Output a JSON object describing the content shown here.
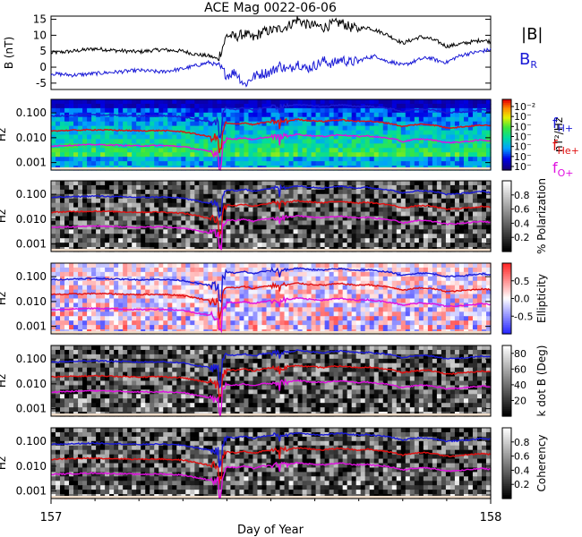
{
  "title": "ACE Mag 0022-06-06",
  "xlabel": "Day of Year",
  "x_ticks": [
    "157",
    "158"
  ],
  "legend_mag": [
    {
      "label": "|B|",
      "color": "#000000"
    },
    {
      "label": "B",
      "sub": "R",
      "color": "#1a1ad6"
    }
  ],
  "legend_gyro": [
    {
      "label": "f",
      "sub": "H+",
      "color": "#1a1ad6"
    },
    {
      "label": "f",
      "sub": "He+",
      "color": "#e01010"
    },
    {
      "label": "f",
      "sub": "O+",
      "color": "#e010e0"
    }
  ],
  "chart_data": [
    {
      "type": "line",
      "panel": "magnetic-field",
      "ylabel": "B (nT)",
      "ylim": [
        -7,
        16
      ],
      "y_ticks": [
        "-5",
        "0",
        "5",
        "10",
        "15"
      ],
      "x_range": [
        157,
        158
      ],
      "series": [
        {
          "name": "|B|",
          "color": "#000000",
          "x": [
            157.0,
            157.05,
            157.1,
            157.15,
            157.2,
            157.25,
            157.3,
            157.33,
            157.36,
            157.38,
            157.4,
            157.42,
            157.44,
            157.46,
            157.48,
            157.5,
            157.52,
            157.54,
            157.56,
            157.58,
            157.6,
            157.62,
            157.64,
            157.66,
            157.68,
            157.7,
            157.72,
            157.74,
            157.76,
            157.78,
            157.8,
            157.82,
            157.84,
            157.86,
            157.88,
            157.9,
            157.92,
            157.94,
            157.96,
            157.98,
            158.0
          ],
          "y": [
            4.5,
            5.0,
            5.8,
            5.2,
            4.8,
            5.5,
            5.0,
            4.0,
            3.5,
            2.5,
            10.0,
            9.5,
            10.5,
            9.0,
            11.0,
            11.5,
            12.0,
            13.0,
            15.0,
            13.5,
            13.0,
            12.5,
            13.5,
            14.0,
            12.5,
            12.0,
            12.5,
            11.5,
            10.5,
            9.0,
            7.5,
            8.5,
            9.5,
            9.0,
            8.0,
            6.5,
            7.0,
            7.5,
            8.0,
            8.5,
            8.0
          ]
        },
        {
          "name": "B_R",
          "color": "#1a1ad6",
          "x": [
            157.0,
            157.05,
            157.1,
            157.15,
            157.2,
            157.25,
            157.3,
            157.33,
            157.36,
            157.38,
            157.4,
            157.42,
            157.44,
            157.46,
            157.48,
            157.5,
            157.52,
            157.54,
            157.56,
            157.58,
            157.6,
            157.62,
            157.64,
            157.66,
            157.68,
            157.7,
            157.72,
            157.74,
            157.76,
            157.78,
            157.8,
            157.82,
            157.84,
            157.86,
            157.88,
            157.9,
            157.92,
            157.94,
            157.96,
            157.98,
            158.0
          ],
          "y": [
            -2.0,
            -2.5,
            -2.0,
            -1.5,
            -1.0,
            -1.5,
            -0.5,
            0.5,
            1.5,
            0.5,
            -2.5,
            -1.5,
            -5.5,
            -3.0,
            -2.0,
            -1.5,
            0.5,
            -1.0,
            1.5,
            -0.5,
            0.5,
            2.0,
            1.0,
            2.5,
            1.5,
            2.0,
            3.0,
            3.5,
            2.0,
            1.5,
            0.5,
            1.5,
            2.5,
            3.0,
            2.0,
            1.5,
            3.0,
            4.0,
            4.5,
            5.0,
            5.5
          ]
        }
      ]
    },
    {
      "type": "heatmap",
      "panel": "power-spectrum",
      "ylabel": "Hz",
      "y_scale": "log",
      "y_ticks": [
        "0.100",
        "0.010",
        "0.001"
      ],
      "colorbar_label": "nT²/Hz",
      "colorbar_ticks": [
        "10⁻²",
        "10⁻",
        "10⁻",
        "10⁻",
        "10⁻",
        "10⁻",
        "10⁻"
      ],
      "palette": "rainbow"
    },
    {
      "type": "heatmap",
      "panel": "polarization",
      "ylabel": "Hz",
      "y_scale": "log",
      "y_ticks": [
        "0.100",
        "0.010",
        "0.001"
      ],
      "colorbar_label": "% Polarization",
      "colorbar_ticks": [
        "0.8",
        "0.6",
        "0.4",
        "0.2"
      ],
      "colorbar_range": [
        0,
        1
      ],
      "palette": "gray"
    },
    {
      "type": "heatmap",
      "panel": "ellipticity",
      "ylabel": "Hz",
      "y_scale": "log",
      "y_ticks": [
        "0.100",
        "0.010",
        "0.001"
      ],
      "colorbar_label": "Ellipticity",
      "colorbar_ticks": [
        "0.5",
        "0.0",
        "-0.5"
      ],
      "colorbar_range": [
        -1,
        1
      ],
      "palette": "bluewhitered"
    },
    {
      "type": "heatmap",
      "panel": "k-dot-b",
      "ylabel": "Hz",
      "y_scale": "log",
      "y_ticks": [
        "0.100",
        "0.010",
        "0.001"
      ],
      "colorbar_label": "k dot B (Deg)",
      "colorbar_ticks": [
        "80",
        "60",
        "40",
        "20"
      ],
      "colorbar_range": [
        0,
        90
      ],
      "palette": "gray"
    },
    {
      "type": "heatmap",
      "panel": "coherency",
      "ylabel": "Hz",
      "y_scale": "log",
      "y_ticks": [
        "0.100",
        "0.010",
        "0.001"
      ],
      "colorbar_label": "Coherency",
      "colorbar_ticks": [
        "0.8",
        "0.6",
        "0.4",
        "0.2"
      ],
      "colorbar_range": [
        0,
        1
      ],
      "palette": "gray"
    }
  ],
  "gyro_lines": {
    "x": [
      157.0,
      157.05,
      157.1,
      157.15,
      157.2,
      157.25,
      157.3,
      157.33,
      157.36,
      157.38,
      157.4,
      157.42,
      157.44,
      157.46,
      157.48,
      157.5,
      157.52,
      157.54,
      157.56,
      157.58,
      157.6,
      157.62,
      157.64,
      157.66,
      157.68,
      157.7,
      157.72,
      157.74,
      157.76,
      157.78,
      157.8,
      157.82,
      157.84,
      157.86,
      157.88,
      157.9,
      157.92,
      157.94,
      157.96,
      157.98,
      158.0
    ],
    "fH": [
      0.075,
      0.08,
      0.085,
      0.08,
      0.075,
      0.078,
      0.07,
      0.055,
      0.045,
      0.04,
      0.15,
      0.14,
      0.16,
      0.13,
      0.16,
      0.17,
      0.18,
      0.19,
      0.22,
      0.2,
      0.19,
      0.18,
      0.2,
      0.21,
      0.19,
      0.18,
      0.19,
      0.17,
      0.16,
      0.14,
      0.11,
      0.13,
      0.14,
      0.135,
      0.12,
      0.1,
      0.105,
      0.11,
      0.12,
      0.13,
      0.12
    ],
    "fHe": [
      0.019,
      0.02,
      0.021,
      0.02,
      0.019,
      0.0195,
      0.0175,
      0.014,
      0.011,
      0.0095,
      0.038,
      0.035,
      0.04,
      0.033,
      0.04,
      0.043,
      0.045,
      0.048,
      0.055,
      0.05,
      0.048,
      0.045,
      0.05,
      0.052,
      0.048,
      0.045,
      0.048,
      0.043,
      0.04,
      0.035,
      0.028,
      0.032,
      0.035,
      0.034,
      0.03,
      0.025,
      0.026,
      0.028,
      0.03,
      0.032,
      0.03
    ],
    "fO": [
      0.0047,
      0.005,
      0.0053,
      0.005,
      0.0047,
      0.0049,
      0.0044,
      0.0035,
      0.0028,
      0.0024,
      0.0094,
      0.0088,
      0.01,
      0.0081,
      0.01,
      0.0106,
      0.0113,
      0.0119,
      0.0138,
      0.0125,
      0.0119,
      0.0113,
      0.0125,
      0.0131,
      0.0119,
      0.0113,
      0.0119,
      0.0106,
      0.01,
      0.0088,
      0.0069,
      0.0081,
      0.0088,
      0.0084,
      0.0075,
      0.0063,
      0.0066,
      0.0069,
      0.0075,
      0.0081,
      0.0075
    ],
    "colors": {
      "fH": "#1a1ad6",
      "fHe": "#e01010",
      "fO": "#e010e0"
    }
  }
}
